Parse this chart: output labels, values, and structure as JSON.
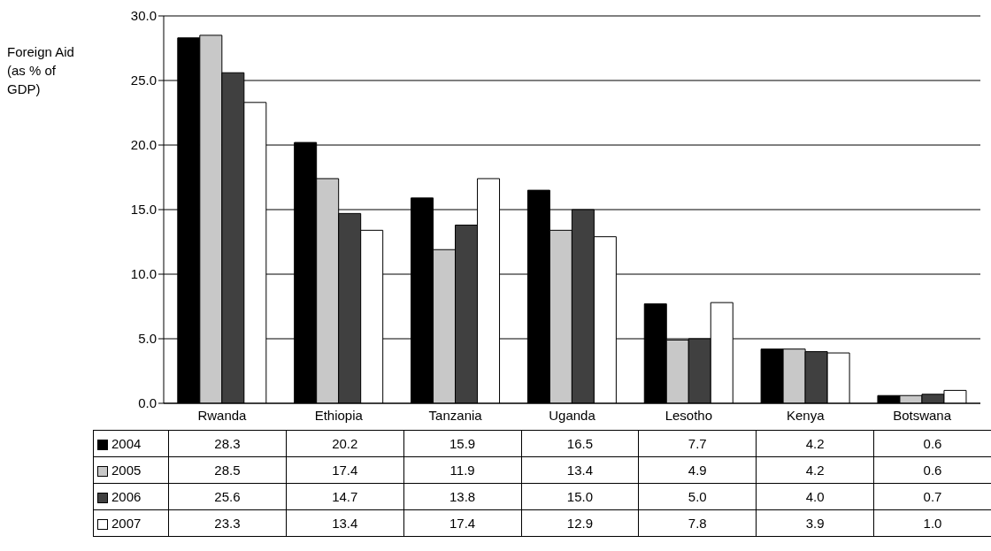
{
  "chart_data": {
    "type": "bar",
    "ylabel": "Foreign Aid (as % of GDP)",
    "categories": [
      "Rwanda",
      "Ethiopia",
      "Tanzania",
      "Uganda",
      "Lesotho",
      "Kenya",
      "Botswana"
    ],
    "series": [
      {
        "name": "2004",
        "color": "#000000",
        "values": [
          28.3,
          20.2,
          15.9,
          16.5,
          7.7,
          4.2,
          0.6
        ],
        "value_labels": [
          "28.3",
          "20.2",
          "15.9",
          "16.5",
          "7.7",
          "4.2",
          "0.6"
        ]
      },
      {
        "name": "2005",
        "color": "#c8c8c8",
        "values": [
          28.5,
          17.4,
          11.9,
          13.4,
          4.9,
          4.2,
          0.6
        ],
        "value_labels": [
          "28.5",
          "17.4",
          "11.9",
          "13.4",
          "4.9",
          "4.2",
          "0.6"
        ]
      },
      {
        "name": "2006",
        "color": "#404040",
        "values": [
          25.6,
          14.7,
          13.8,
          15.0,
          5.0,
          4.0,
          0.7
        ],
        "value_labels": [
          "25.6",
          "14.7",
          "13.8",
          "15.0",
          "5.0",
          "4.0",
          "0.7"
        ]
      },
      {
        "name": "2007",
        "color": "#ffffff",
        "values": [
          23.3,
          13.4,
          17.4,
          12.9,
          7.8,
          3.9,
          1.0
        ],
        "value_labels": [
          "23.3",
          "13.4",
          "17.4",
          "12.9",
          "7.8",
          "3.9",
          "1.0"
        ]
      }
    ],
    "ylim": [
      0,
      30
    ],
    "yticks": [
      {
        "value": 0,
        "label": "0.0"
      },
      {
        "value": 5,
        "label": "5.0"
      },
      {
        "value": 10,
        "label": "10.0"
      },
      {
        "value": 15,
        "label": "15.0"
      },
      {
        "value": 20,
        "label": "20.0"
      },
      {
        "value": 25,
        "label": "25.0"
      },
      {
        "value": 30,
        "label": "30.0"
      }
    ],
    "grid": "y",
    "legend": "bottom"
  }
}
